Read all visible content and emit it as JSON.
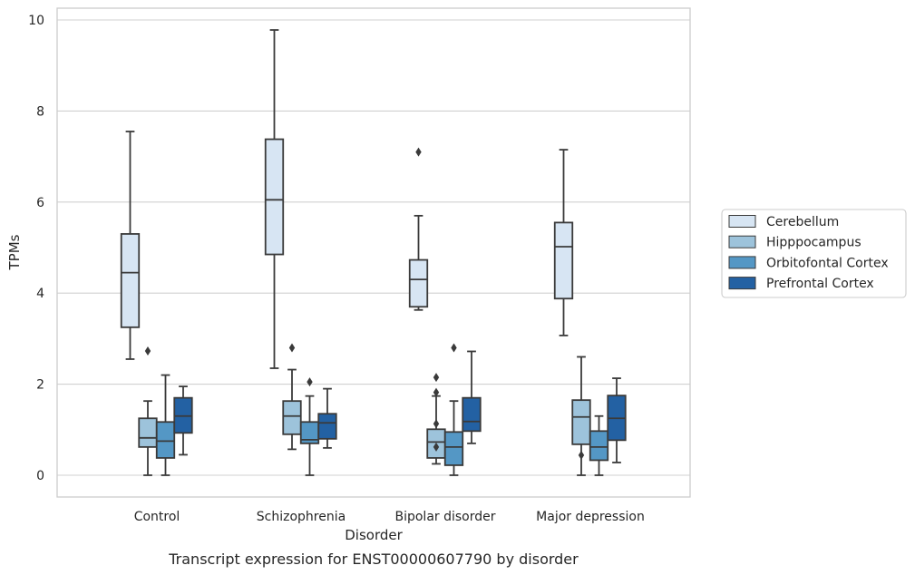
{
  "chart_data": {
    "type": "box",
    "caption": "Transcript expression for ENST00000607790 by disorder",
    "xlabel": "Disorder",
    "ylabel": "TPMs",
    "ylim": [
      -0.45,
      10.3
    ],
    "yticks": [
      0,
      2,
      4,
      6,
      8,
      10
    ],
    "grid": true,
    "legend_position": "right",
    "categories": [
      "Control",
      "Schizophrenia",
      "Bipolar disorder",
      "Major depression"
    ],
    "series": [
      {
        "name": "Cerebellum",
        "color": "#d7e5f3",
        "boxes": [
          {
            "whisker_low": 2.55,
            "q1": 3.25,
            "median": 4.45,
            "q3": 5.3,
            "whisker_high": 7.55,
            "outliers": []
          },
          {
            "whisker_low": 2.35,
            "q1": 4.85,
            "median": 6.05,
            "q3": 7.38,
            "whisker_high": 9.78,
            "outliers": []
          },
          {
            "whisker_low": 3.63,
            "q1": 3.7,
            "median": 4.3,
            "q3": 4.73,
            "whisker_high": 5.7,
            "outliers": [
              7.1
            ]
          },
          {
            "whisker_low": 3.07,
            "q1": 3.88,
            "median": 5.02,
            "q3": 5.55,
            "whisker_high": 7.15,
            "outliers": []
          }
        ]
      },
      {
        "name": "Hipppocampus",
        "color": "#9dc3db",
        "boxes": [
          {
            "whisker_low": 0.0,
            "q1": 0.62,
            "median": 0.82,
            "q3": 1.25,
            "whisker_high": 1.63,
            "outliers": [
              2.73
            ]
          },
          {
            "whisker_low": 0.57,
            "q1": 0.9,
            "median": 1.3,
            "q3": 1.63,
            "whisker_high": 2.32,
            "outliers": [
              2.8
            ]
          },
          {
            "whisker_low": 0.25,
            "q1": 0.38,
            "median": 0.73,
            "q3": 1.01,
            "whisker_high": 1.74,
            "outliers": [
              0.62,
              1.13,
              1.82,
              2.15
            ]
          },
          {
            "whisker_low": 0.0,
            "q1": 0.68,
            "median": 1.28,
            "q3": 1.65,
            "whisker_high": 2.6,
            "outliers": [
              0.44
            ]
          }
        ]
      },
      {
        "name": "Orbitofontal Cortex",
        "color": "#5497c5",
        "boxes": [
          {
            "whisker_low": 0.0,
            "q1": 0.38,
            "median": 0.75,
            "q3": 1.17,
            "whisker_high": 2.2,
            "outliers": []
          },
          {
            "whisker_low": 0.0,
            "q1": 0.7,
            "median": 0.78,
            "q3": 1.17,
            "whisker_high": 1.74,
            "outliers": [
              2.05
            ]
          },
          {
            "whisker_low": 0.0,
            "q1": 0.22,
            "median": 0.62,
            "q3": 0.95,
            "whisker_high": 1.63,
            "outliers": [
              2.8
            ]
          },
          {
            "whisker_low": 0.0,
            "q1": 0.33,
            "median": 0.62,
            "q3": 0.97,
            "whisker_high": 1.3,
            "outliers": []
          }
        ]
      },
      {
        "name": "Prefrontal Cortex",
        "color": "#2361a3",
        "boxes": [
          {
            "whisker_low": 0.45,
            "q1": 0.93,
            "median": 1.3,
            "q3": 1.7,
            "whisker_high": 1.95,
            "outliers": []
          },
          {
            "whisker_low": 0.6,
            "q1": 0.8,
            "median": 1.15,
            "q3": 1.35,
            "whisker_high": 1.9,
            "outliers": []
          },
          {
            "whisker_low": 0.7,
            "q1": 0.97,
            "median": 1.18,
            "q3": 1.7,
            "whisker_high": 2.72,
            "outliers": []
          },
          {
            "whisker_low": 0.28,
            "q1": 0.77,
            "median": 1.25,
            "q3": 1.75,
            "whisker_high": 2.13,
            "outliers": []
          }
        ]
      }
    ]
  }
}
